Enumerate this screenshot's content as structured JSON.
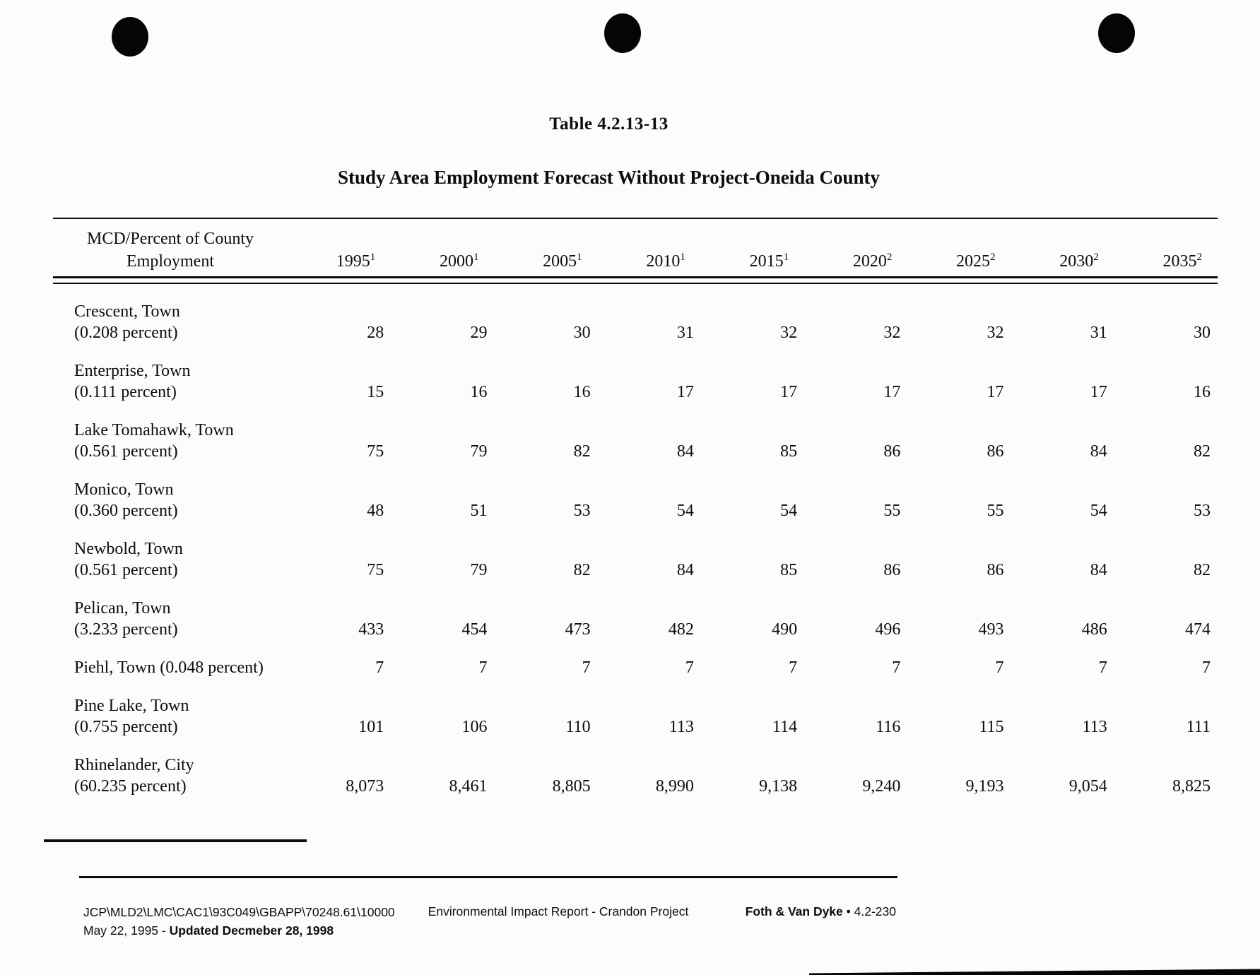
{
  "page": {
    "title": "Table 4.2.13-13",
    "subtitle": "Study Area Employment Forecast Without Project-Oneida County"
  },
  "table": {
    "header": {
      "col1_line1": "MCD/Percent of County",
      "col1_line2": "Employment",
      "years": [
        {
          "label": "1995",
          "sup": "1"
        },
        {
          "label": "2000",
          "sup": "1"
        },
        {
          "label": "2005",
          "sup": "1"
        },
        {
          "label": "2010",
          "sup": "1"
        },
        {
          "label": "2015",
          "sup": "1"
        },
        {
          "label": "2020",
          "sup": "2"
        },
        {
          "label": "2025",
          "sup": "2"
        },
        {
          "label": "2030",
          "sup": "2"
        },
        {
          "label": "2035",
          "sup": "2"
        }
      ]
    },
    "rows": [
      {
        "name": "Crescent, Town",
        "percent": "(0.208 percent)",
        "values": [
          "28",
          "29",
          "30",
          "31",
          "32",
          "32",
          "32",
          "31",
          "30"
        ]
      },
      {
        "name": "Enterprise, Town",
        "percent": "(0.111 percent)",
        "values": [
          "15",
          "16",
          "16",
          "17",
          "17",
          "17",
          "17",
          "17",
          "16"
        ]
      },
      {
        "name": "Lake Tomahawk, Town",
        "percent": "(0.561 percent)",
        "values": [
          "75",
          "79",
          "82",
          "84",
          "85",
          "86",
          "86",
          "84",
          "82"
        ]
      },
      {
        "name": "Monico, Town",
        "percent": "(0.360 percent)",
        "values": [
          "48",
          "51",
          "53",
          "54",
          "54",
          "55",
          "55",
          "54",
          "53"
        ]
      },
      {
        "name": "Newbold, Town",
        "percent": "(0.561 percent)",
        "values": [
          "75",
          "79",
          "82",
          "84",
          "85",
          "86",
          "86",
          "84",
          "82"
        ]
      },
      {
        "name": "Pelican, Town",
        "percent": "(3.233 percent)",
        "values": [
          "433",
          "454",
          "473",
          "482",
          "490",
          "496",
          "493",
          "486",
          "474"
        ]
      },
      {
        "name": "Piehl, Town (0.048 percent)",
        "percent": "",
        "values": [
          "7",
          "7",
          "7",
          "7",
          "7",
          "7",
          "7",
          "7",
          "7"
        ]
      },
      {
        "name": "Pine Lake, Town",
        "percent": "(0.755 percent)",
        "values": [
          "101",
          "106",
          "110",
          "113",
          "114",
          "116",
          "115",
          "113",
          "111"
        ]
      },
      {
        "name": "Rhinelander, City",
        "percent": "(60.235 percent)",
        "values": [
          "8,073",
          "8,461",
          "8,805",
          "8,990",
          "9,138",
          "9,240",
          "9,193",
          "9,054",
          "8,825"
        ]
      }
    ]
  },
  "footer": {
    "left_line1": "JCP\\MLD2\\LMC\\CAC1\\93C049\\GBAPP\\70248.61\\10000",
    "left_line2_normal": "May 22, 1995 - ",
    "left_line2_bold": "Updated Decmeber 28, 1998",
    "center": "Environmental Impact Report - Crandon Project",
    "right_bold": "Foth & Van Dyke",
    "right_rest": " • 4.2-230"
  }
}
